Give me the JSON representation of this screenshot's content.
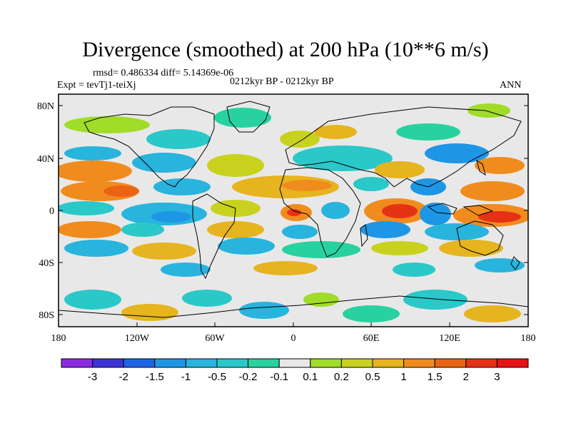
{
  "title": "Divergence (smoothed) at 200 hPa (10**6 m/s)",
  "stats": "rmsd= 0.486334 diff= 5.14369e-06",
  "experiment": "Expt = tevTj1-teiXj",
  "period": "0212kyr BP - 0212kyr BP",
  "season": "ANN",
  "map": {
    "lat_labels": [
      "80N",
      "40N",
      "0",
      "40S",
      "80S"
    ],
    "lon_labels": [
      "180",
      "120W",
      "60W",
      "0",
      "60E",
      "120E",
      "180"
    ],
    "background_color": "#e8e8e8"
  },
  "colorbar": {
    "labels": [
      "-3",
      "-2",
      "-1.5",
      "-1",
      "-0.5",
      "-0.2",
      "-0.1",
      "0.1",
      "0.2",
      "0.5",
      "1",
      "1.5",
      "2",
      "3"
    ],
    "colors": [
      "#8a2be2",
      "#3c32d8",
      "#1e64e6",
      "#1e96e6",
      "#28b4dc",
      "#2ac8c8",
      "#28d2a0",
      "#e8e8e8",
      "#a0dc28",
      "#c8d21e",
      "#e6b41e",
      "#f08c1e",
      "#eb6414",
      "#e63214",
      "#e61414"
    ]
  }
}
